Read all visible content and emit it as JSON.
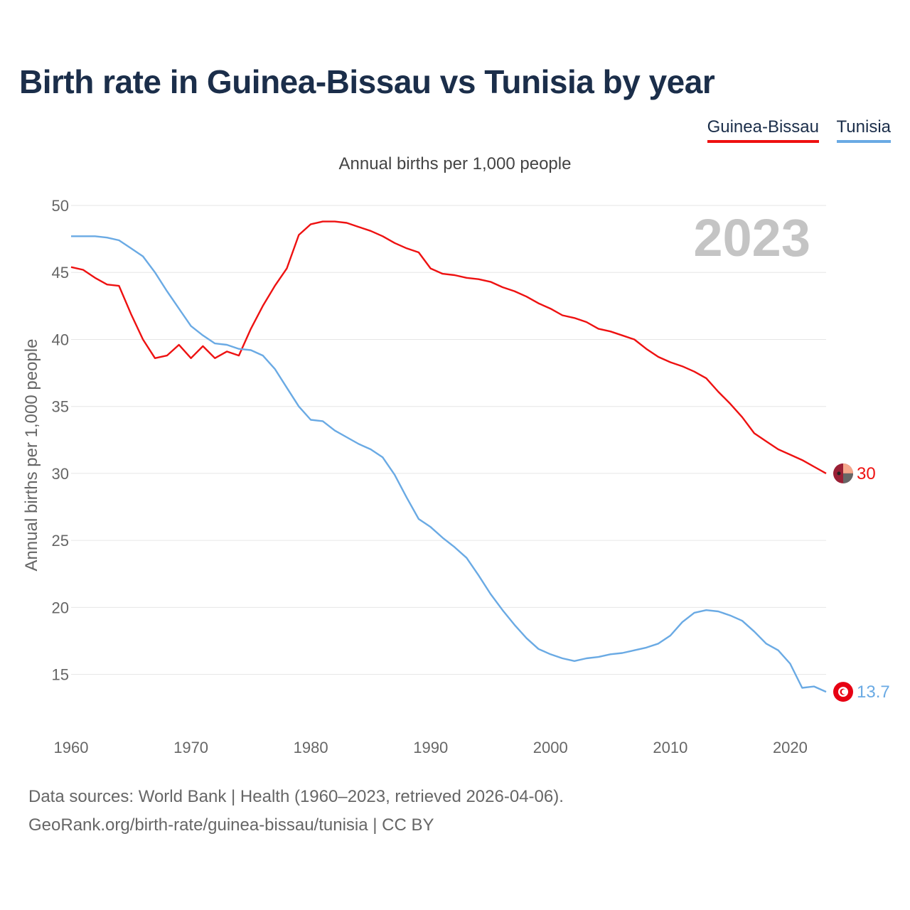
{
  "title": "Birth rate in Guinea-Bissau vs Tunisia by year",
  "subtitle": "Annual births per 1,000 people",
  "year_label": "2023",
  "legend": [
    {
      "name": "Guinea-Bissau",
      "color": "#ee1111"
    },
    {
      "name": "Tunisia",
      "color": "#6aaae4"
    }
  ],
  "sources": {
    "line1": "Data sources: World Bank | Health (1960–2023, retrieved 2026-04-06).",
    "line2": "GeoRank.org/birth-rate/guinea-bissau/tunisia | CC BY"
  },
  "chart_data": {
    "type": "line",
    "title": "Birth rate in Guinea-Bissau vs Tunisia by year",
    "ylabel": "Annual births per 1,000 people",
    "xlabel": "",
    "xlim": [
      1960,
      2023
    ],
    "ylim": [
      11,
      50
    ],
    "x_ticks": [
      1960,
      1970,
      1980,
      1990,
      2000,
      2010,
      2020
    ],
    "y_ticks": [
      15,
      20,
      25,
      30,
      35,
      40,
      45,
      50
    ],
    "grid": true,
    "x": [
      1960,
      1961,
      1962,
      1963,
      1964,
      1965,
      1966,
      1967,
      1968,
      1969,
      1970,
      1971,
      1972,
      1973,
      1974,
      1975,
      1976,
      1977,
      1978,
      1979,
      1980,
      1981,
      1982,
      1983,
      1984,
      1985,
      1986,
      1987,
      1988,
      1989,
      1990,
      1991,
      1992,
      1993,
      1994,
      1995,
      1996,
      1997,
      1998,
      1999,
      2000,
      2001,
      2002,
      2003,
      2004,
      2005,
      2006,
      2007,
      2008,
      2009,
      2010,
      2011,
      2012,
      2013,
      2014,
      2015,
      2016,
      2017,
      2018,
      2019,
      2020,
      2021,
      2022,
      2023
    ],
    "series": [
      {
        "name": "Guinea-Bissau",
        "color": "#ee1111",
        "end_label": "30",
        "values": [
          45.4,
          45.2,
          44.6,
          44.1,
          44.0,
          41.9,
          40.0,
          38.6,
          38.8,
          39.6,
          38.6,
          39.5,
          38.6,
          39.1,
          38.8,
          40.8,
          42.5,
          44.0,
          45.3,
          47.8,
          48.6,
          48.8,
          48.8,
          48.7,
          48.4,
          48.1,
          47.7,
          47.2,
          46.8,
          46.5,
          45.3,
          44.9,
          44.8,
          44.6,
          44.5,
          44.3,
          43.9,
          43.6,
          43.2,
          42.7,
          42.3,
          41.8,
          41.6,
          41.3,
          40.8,
          40.6,
          40.3,
          40.0,
          39.3,
          38.7,
          38.3,
          38.0,
          37.6,
          37.1,
          36.1,
          35.2,
          34.2,
          33.0,
          32.4,
          31.8,
          31.4,
          31.0,
          30.5,
          30.0
        ]
      },
      {
        "name": "Tunisia",
        "color": "#6aaae4",
        "end_label": "13.7",
        "values": [
          47.7,
          47.7,
          47.7,
          47.6,
          47.4,
          46.8,
          46.2,
          45.0,
          43.6,
          42.3,
          41.0,
          40.3,
          39.7,
          39.6,
          39.3,
          39.2,
          38.8,
          37.8,
          36.4,
          35.0,
          34.0,
          33.9,
          33.2,
          32.7,
          32.2,
          31.8,
          31.2,
          29.9,
          28.2,
          26.6,
          26.0,
          25.2,
          24.5,
          23.7,
          22.4,
          21.0,
          19.8,
          18.7,
          17.7,
          16.9,
          16.5,
          16.2,
          16.0,
          16.2,
          16.3,
          16.5,
          16.6,
          16.8,
          17.0,
          17.3,
          17.9,
          18.9,
          19.6,
          19.8,
          19.7,
          19.4,
          19.0,
          18.2,
          17.3,
          16.8,
          15.8,
          14.0,
          14.1,
          13.7
        ]
      }
    ]
  }
}
